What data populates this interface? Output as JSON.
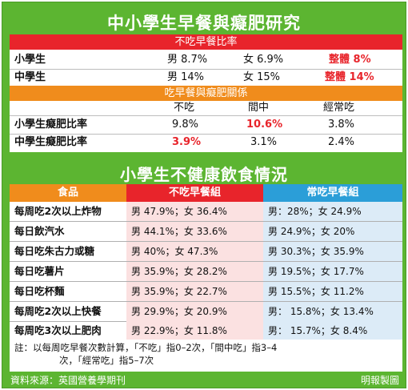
{
  "title_top": "中小學生早餐與癡肥研究",
  "section1": {
    "band": "不吃早餐比率",
    "rows": [
      {
        "label": "小學生",
        "male": "男 8.7%",
        "female": "女 6.9%",
        "overall": "整體 8%"
      },
      {
        "label": "中學生",
        "male": "男 14%",
        "female": "女 15%",
        "overall": "整體 14%"
      }
    ]
  },
  "section2": {
    "band": "吃早餐與癡肥關係",
    "headers": [
      "不吃",
      "間中",
      "經常吃"
    ],
    "rows": [
      {
        "label": "小學生癡肥比率",
        "values": [
          "9.8%",
          "10.6%",
          "3.8%"
        ]
      },
      {
        "label": "中學生癡肥比率",
        "values": [
          "3.9%",
          "3.1%",
          "2.4%"
        ]
      }
    ]
  },
  "title_bottom": "小學生不健康飲食情況",
  "table": {
    "headers": [
      "食品",
      "不吃早餐組",
      "常吃早餐組"
    ],
    "rows": [
      {
        "food": "每周吃2次以上炸物",
        "skip": "男 47.9%；女 36.4%",
        "eat": "男：28%；女 24.9%"
      },
      {
        "food": "每日飲汽水",
        "skip": "男 44.1%；女 33.6%",
        "eat": "男 24.9%；女 20%"
      },
      {
        "food": "每日吃朱古力或糖",
        "skip": "男 40%；女 47.3%",
        "eat": "男 30.3%；女 35.9%"
      },
      {
        "food": "每日吃薯片",
        "skip": "男 35.9%；女 28.2%",
        "eat": "男 19.5%；女 17.7%"
      },
      {
        "food": "每日吃杯麵",
        "skip": "男 35.9%；女 22.7%",
        "eat": "男 15.5%；女 11.2%"
      },
      {
        "food": "每周吃2次以上快餐",
        "skip": "男 29.9%；女 20.9%",
        "eat": "男： 15.8%；女 13.4%"
      },
      {
        "food": "每周吃3次以上肥肉",
        "skip": "男 22.9%；女 11.8%",
        "eat": "男： 15.7%；女 8.4%"
      }
    ]
  },
  "notes": {
    "line1": "註：以每周吃早餐次數計算，「不吃」指0–2次，「間中吃」指3–4",
    "line2": "次，「經常吃」指5–7次"
  },
  "footer": {
    "source": "資料來源：英國營養學期刊",
    "credit": "明報製圖"
  },
  "colors": {
    "green": "#5cb531",
    "red": "#e8242b",
    "orange": "#f08c1c",
    "blue": "#2b9ed8"
  }
}
